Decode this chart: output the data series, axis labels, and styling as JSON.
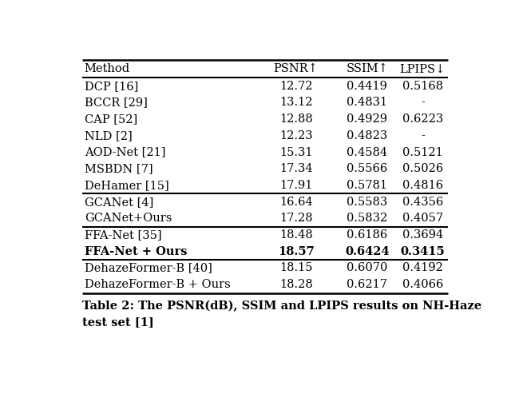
{
  "caption": "Table 2: The PSNR(dB), SSIM and LPIPS results on NH-Haze\ntest set [1]",
  "columns": [
    "Method",
    "PSNR↑",
    "SSIM↑",
    "LPIPS↓"
  ],
  "rows": [
    [
      "DCP [16]",
      "12.72",
      "0.4419",
      "0.5168"
    ],
    [
      "BCCR [29]",
      "13.12",
      "0.4831",
      "-"
    ],
    [
      "CAP [52]",
      "12.88",
      "0.4929",
      "0.6223"
    ],
    [
      "NLD [2]",
      "12.23",
      "0.4823",
      "-"
    ],
    [
      "AOD-Net [21]",
      "15.31",
      "0.4584",
      "0.5121"
    ],
    [
      "MSBDN [7]",
      "17.34",
      "0.5566",
      "0.5026"
    ],
    [
      "DeHamer [15]",
      "17.91",
      "0.5781",
      "0.4816"
    ],
    [
      "GCANet [4]",
      "16.64",
      "0.5583",
      "0.4356"
    ],
    [
      "GCANet+Ours",
      "17.28",
      "0.5832",
      "0.4057"
    ],
    [
      "FFA-Net [35]",
      "18.48",
      "0.6186",
      "0.3694"
    ],
    [
      "FFA-Net + Ours",
      "18.57",
      "0.6424",
      "0.3415"
    ],
    [
      "DehazeFormer-B [40]",
      "18.15",
      "0.6070",
      "0.4192"
    ],
    [
      "DehazeFormer-B + Ours",
      "18.28",
      "0.6217",
      "0.4066"
    ]
  ],
  "bold_row": 10,
  "thick_lines_after": [
    6,
    8,
    10
  ],
  "background_color": "#ffffff",
  "text_color": "#000000",
  "font_size": 10.5,
  "header_font_size": 10.5,
  "caption_font_size": 10.5
}
